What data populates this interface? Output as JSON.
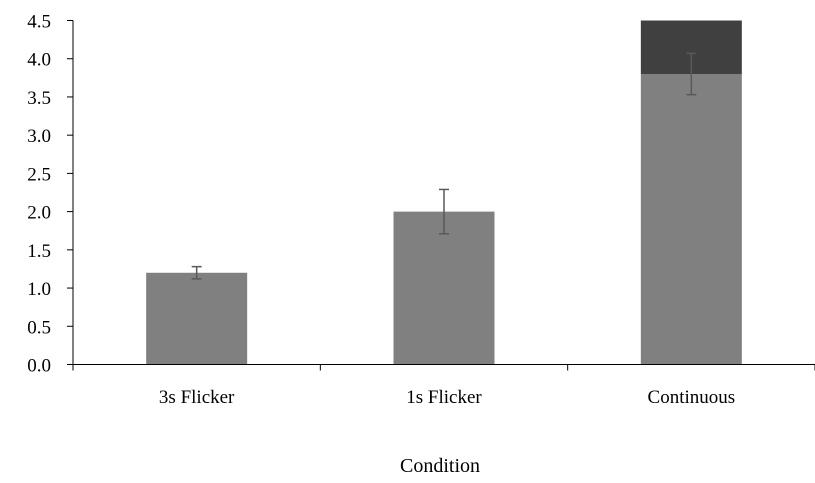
{
  "chart_data": {
    "type": "bar",
    "title": "",
    "xlabel": "Condition",
    "ylabel": "",
    "ylim": [
      0,
      4.5
    ],
    "ytick_step": 0.5,
    "grid": false,
    "categories": [
      "3s Flicker",
      "1s Flicker",
      "Continuous"
    ],
    "series": [
      {
        "values": [
          1.2,
          2.0,
          3.8
        ],
        "error": [
          0.08,
          0.29,
          0.27
        ],
        "color": "#808080"
      },
      {
        "values": [
          0,
          0,
          0.7
        ],
        "color": "#404040"
      }
    ],
    "errorbar_color": "#595959"
  }
}
